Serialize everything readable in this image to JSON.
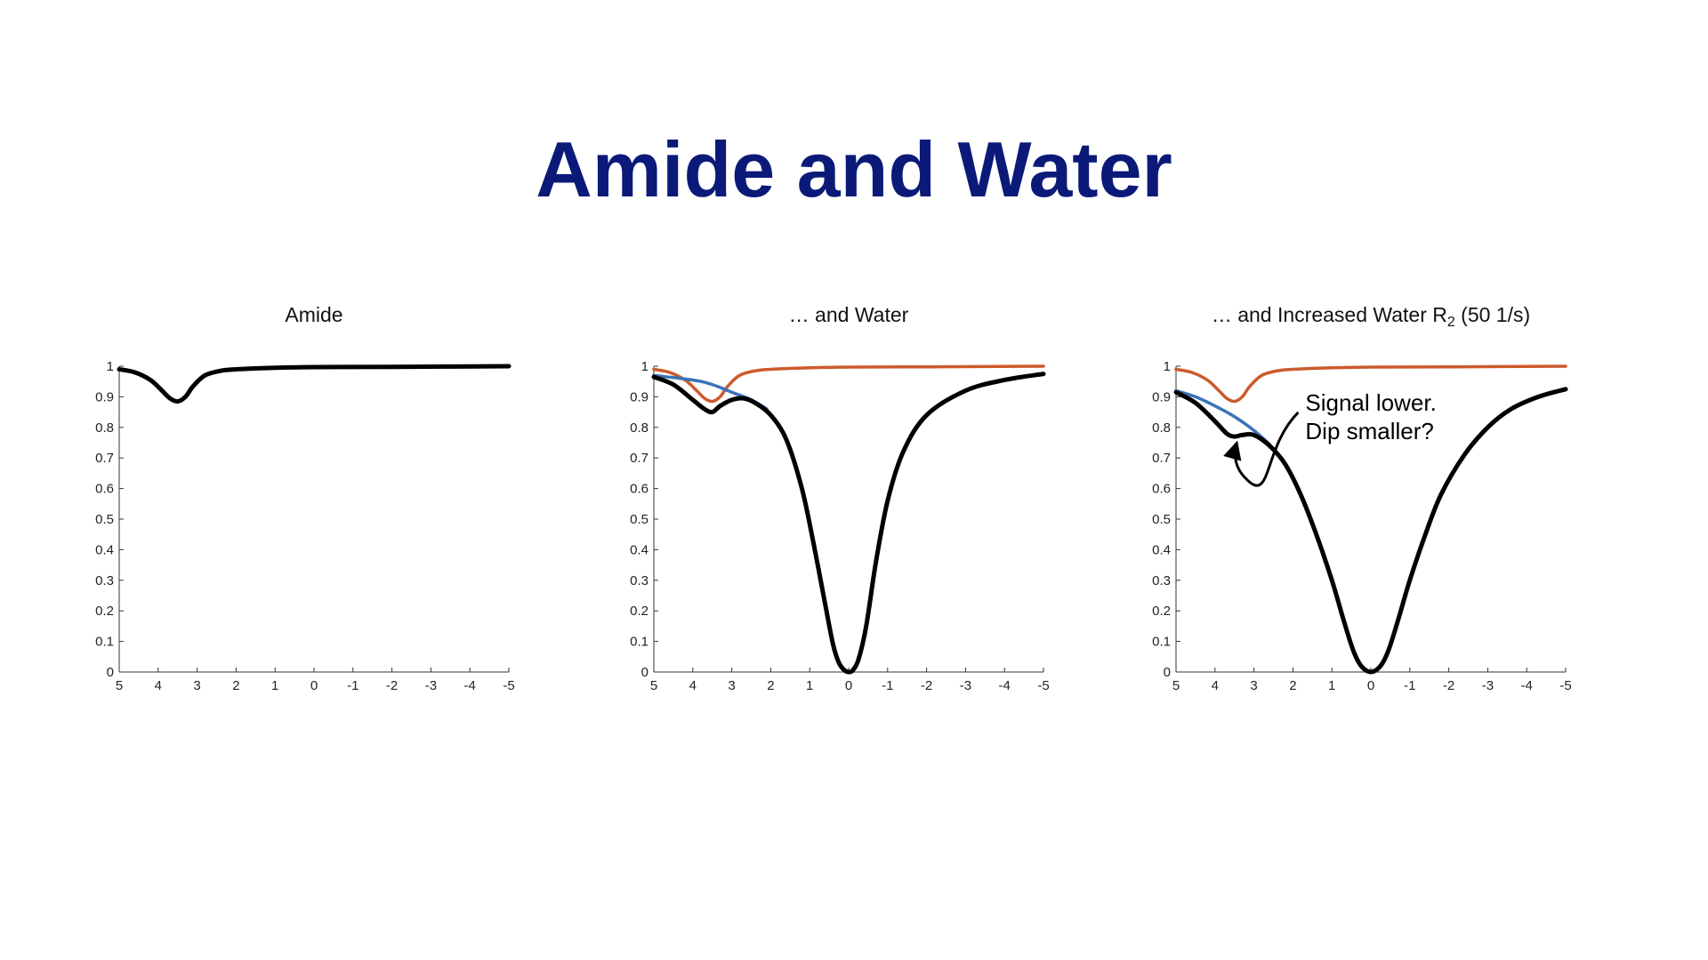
{
  "slide": {
    "title": "Amide and Water"
  },
  "colors": {
    "title": "#0b1a78",
    "total": "#000000",
    "water": "#3a72b8",
    "amide": "#cc5a2c"
  },
  "chart_data": [
    {
      "type": "line",
      "title": "Amide",
      "title_sub": "",
      "title_tail": "",
      "xlim": [
        5,
        -5
      ],
      "ylim": [
        0,
        1
      ],
      "x_ticks": [
        "5",
        "4",
        "3",
        "2",
        "1",
        "0",
        "-1",
        "-2",
        "-3",
        "-4",
        "-5"
      ],
      "y_ticks": [
        "0",
        "0.1",
        "0.2",
        "0.3",
        "0.4",
        "0.5",
        "0.6",
        "0.7",
        "0.8",
        "0.9",
        "1"
      ],
      "series": [
        {
          "color": "#000000",
          "width": 5,
          "points": [
            [
              5,
              0.99
            ],
            [
              4.6,
              0.98
            ],
            [
              4.2,
              0.955
            ],
            [
              3.9,
              0.92
            ],
            [
              3.7,
              0.895
            ],
            [
              3.5,
              0.885
            ],
            [
              3.3,
              0.9
            ],
            [
              3.1,
              0.935
            ],
            [
              2.8,
              0.97
            ],
            [
              2.4,
              0.985
            ],
            [
              2,
              0.99
            ],
            [
              1,
              0.995
            ],
            [
              0,
              0.997
            ],
            [
              -2,
              0.998
            ],
            [
              -5,
              1.0
            ]
          ]
        }
      ],
      "annotation": null
    },
    {
      "type": "line",
      "title": "… and Water",
      "title_sub": "",
      "title_tail": "",
      "xlim": [
        5,
        -5
      ],
      "ylim": [
        0,
        1
      ],
      "x_ticks": [
        "5",
        "4",
        "3",
        "2",
        "1",
        "0",
        "-1",
        "-2",
        "-3",
        "-4",
        "-5"
      ],
      "y_ticks": [
        "0",
        "0.1",
        "0.2",
        "0.3",
        "0.4",
        "0.5",
        "0.6",
        "0.7",
        "0.8",
        "0.9",
        "1"
      ],
      "series": [
        {
          "color": "#cc5a2c",
          "width": 3.5,
          "points": [
            [
              5,
              0.99
            ],
            [
              4.6,
              0.98
            ],
            [
              4.2,
              0.955
            ],
            [
              3.9,
              0.92
            ],
            [
              3.7,
              0.895
            ],
            [
              3.5,
              0.885
            ],
            [
              3.3,
              0.9
            ],
            [
              3.1,
              0.935
            ],
            [
              2.8,
              0.97
            ],
            [
              2.4,
              0.985
            ],
            [
              2,
              0.99
            ],
            [
              1,
              0.995
            ],
            [
              0,
              0.997
            ],
            [
              -2,
              0.998
            ],
            [
              -5,
              1.0
            ]
          ]
        },
        {
          "color": "#3a72b8",
          "width": 3.5,
          "points": [
            [
              5,
              0.97
            ],
            [
              4,
              0.955
            ],
            [
              3.5,
              0.94
            ],
            [
              3,
              0.915
            ],
            [
              2.5,
              0.89
            ],
            [
              2.1,
              0.86
            ]
          ]
        },
        {
          "color": "#000000",
          "width": 5,
          "points": [
            [
              5,
              0.965
            ],
            [
              4.5,
              0.94
            ],
            [
              4.0,
              0.89
            ],
            [
              3.7,
              0.86
            ],
            [
              3.5,
              0.85
            ],
            [
              3.3,
              0.87
            ],
            [
              3.0,
              0.89
            ],
            [
              2.7,
              0.895
            ],
            [
              2.4,
              0.88
            ],
            [
              2.0,
              0.84
            ],
            [
              1.6,
              0.76
            ],
            [
              1.2,
              0.6
            ],
            [
              0.9,
              0.42
            ],
            [
              0.6,
              0.22
            ],
            [
              0.4,
              0.09
            ],
            [
              0.25,
              0.03
            ],
            [
              0.1,
              0.005
            ],
            [
              0,
              0.0
            ],
            [
              -0.1,
              0.005
            ],
            [
              -0.25,
              0.04
            ],
            [
              -0.45,
              0.15
            ],
            [
              -0.7,
              0.36
            ],
            [
              -1.0,
              0.56
            ],
            [
              -1.4,
              0.72
            ],
            [
              -2.0,
              0.84
            ],
            [
              -3.0,
              0.92
            ],
            [
              -4.0,
              0.955
            ],
            [
              -5,
              0.975
            ]
          ]
        }
      ],
      "annotation": null
    },
    {
      "type": "line",
      "title": "… and Increased Water R",
      "title_sub": "2",
      "title_tail": " (50 1/s)",
      "xlim": [
        5,
        -5
      ],
      "ylim": [
        0,
        1
      ],
      "x_ticks": [
        "5",
        "4",
        "3",
        "2",
        "1",
        "0",
        "-1",
        "-2",
        "-3",
        "-4",
        "-5"
      ],
      "y_ticks": [
        "0",
        "0.1",
        "0.2",
        "0.3",
        "0.4",
        "0.5",
        "0.6",
        "0.7",
        "0.8",
        "0.9",
        "1"
      ],
      "series": [
        {
          "color": "#cc5a2c",
          "width": 3.5,
          "points": [
            [
              5,
              0.99
            ],
            [
              4.6,
              0.98
            ],
            [
              4.2,
              0.955
            ],
            [
              3.9,
              0.92
            ],
            [
              3.7,
              0.895
            ],
            [
              3.5,
              0.885
            ],
            [
              3.3,
              0.9
            ],
            [
              3.1,
              0.935
            ],
            [
              2.8,
              0.97
            ],
            [
              2.4,
              0.985
            ],
            [
              2,
              0.99
            ],
            [
              1,
              0.995
            ],
            [
              0,
              0.997
            ],
            [
              -2,
              0.998
            ],
            [
              -5,
              1.0
            ]
          ]
        },
        {
          "color": "#3a72b8",
          "width": 3.5,
          "points": [
            [
              5,
              0.92
            ],
            [
              4.5,
              0.9
            ],
            [
              4.0,
              0.87
            ],
            [
              3.5,
              0.835
            ],
            [
              3.0,
              0.79
            ],
            [
              2.6,
              0.745
            ]
          ]
        },
        {
          "color": "#000000",
          "width": 5,
          "points": [
            [
              5,
              0.915
            ],
            [
              4.5,
              0.88
            ],
            [
              4.0,
              0.82
            ],
            [
              3.7,
              0.78
            ],
            [
              3.5,
              0.77
            ],
            [
              3.3,
              0.775
            ],
            [
              3.0,
              0.775
            ],
            [
              2.6,
              0.74
            ],
            [
              2.2,
              0.68
            ],
            [
              1.8,
              0.58
            ],
            [
              1.4,
              0.45
            ],
            [
              1.0,
              0.3
            ],
            [
              0.7,
              0.17
            ],
            [
              0.45,
              0.07
            ],
            [
              0.25,
              0.02
            ],
            [
              0,
              0.0
            ],
            [
              -0.25,
              0.02
            ],
            [
              -0.45,
              0.07
            ],
            [
              -0.7,
              0.17
            ],
            [
              -1.0,
              0.3
            ],
            [
              -1.4,
              0.45
            ],
            [
              -1.8,
              0.58
            ],
            [
              -2.4,
              0.71
            ],
            [
              -3.0,
              0.8
            ],
            [
              -3.6,
              0.86
            ],
            [
              -4.3,
              0.9
            ],
            [
              -5,
              0.925
            ]
          ]
        }
      ],
      "annotation": {
        "lines": [
          "Signal lower.",
          "Dip smaller?"
        ],
        "anchor_x": 2.0,
        "anchor_y": 0.82
      }
    }
  ]
}
